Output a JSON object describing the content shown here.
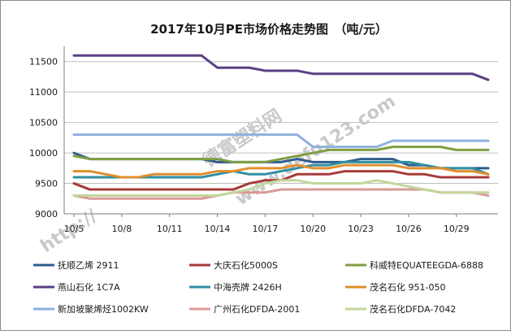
{
  "chart_data": {
    "type": "line",
    "title": "2017年10月PE市场价格走势图　（吨/元）",
    "xlabel": "",
    "ylabel": "",
    "ylim": [
      9000,
      11750
    ],
    "yticks": [
      9000,
      9500,
      10000,
      10500,
      11000,
      11500
    ],
    "x": [
      5,
      6,
      7,
      8,
      9,
      10,
      11,
      12,
      13,
      14,
      15,
      16,
      17,
      18,
      19,
      20,
      21,
      22,
      23,
      24,
      25,
      26,
      27,
      28,
      29,
      30,
      31
    ],
    "xtick_labels": [
      {
        "x": 5,
        "label": "10/5"
      },
      {
        "x": 8,
        "label": "10/8"
      },
      {
        "x": 11,
        "label": "10/11"
      },
      {
        "x": 14,
        "label": "10/14"
      },
      {
        "x": 17,
        "label": "10/17"
      },
      {
        "x": 20,
        "label": "10/20"
      },
      {
        "x": 23,
        "label": "10/23"
      },
      {
        "x": 26,
        "label": "10/26"
      },
      {
        "x": 29,
        "label": "10/29"
      }
    ],
    "series": [
      {
        "name": "抚顺乙烯 2911",
        "color": "#2e5c8c",
        "values": [
          10000,
          9900,
          9900,
          9900,
          9900,
          9900,
          9900,
          9900,
          9900,
          9850,
          9850,
          9850,
          9850,
          9850,
          9900,
          9850,
          9850,
          9850,
          9900,
          9900,
          9900,
          9800,
          9800,
          9750,
          9750,
          9750,
          9750
        ]
      },
      {
        "name": "大庆石化5000S",
        "color": "#a83a3a",
        "values": [
          9500,
          9400,
          9400,
          9400,
          9400,
          9400,
          9400,
          9400,
          9400,
          9400,
          9400,
          9500,
          9550,
          9550,
          9650,
          9650,
          9650,
          9700,
          9700,
          9700,
          9700,
          9650,
          9650,
          9600,
          9600,
          9600,
          9600
        ]
      },
      {
        "name": "科威特EQUATEEGDA-6888",
        "color": "#7f9e42",
        "values": [
          9950,
          9900,
          9900,
          9900,
          9900,
          9900,
          9900,
          9900,
          9900,
          9900,
          9850,
          9850,
          9850,
          9900,
          9950,
          10000,
          10050,
          10050,
          10050,
          10050,
          10100,
          10100,
          10100,
          10100,
          10050,
          10050,
          10050
        ]
      },
      {
        "name": "燕山石化 1C7A",
        "color": "#5b3f86",
        "values": [
          11600,
          11600,
          11600,
          11600,
          11600,
          11600,
          11600,
          11600,
          11600,
          11400,
          11400,
          11400,
          11350,
          11350,
          11350,
          11300,
          11300,
          11300,
          11300,
          11300,
          11300,
          11300,
          11300,
          11300,
          11300,
          11300,
          11200
        ]
      },
      {
        "name": "中海壳牌 2426H",
        "color": "#2f8fa3",
        "values": [
          9600,
          9600,
          9600,
          9600,
          9600,
          9600,
          9600,
          9600,
          9600,
          9650,
          9700,
          9650,
          9650,
          9700,
          9750,
          9800,
          9800,
          9850,
          9850,
          9850,
          9850,
          9850,
          9800,
          9750,
          9750,
          9750,
          9650
        ]
      },
      {
        "name": "茂名石化 951-050",
        "color": "#e08f2e",
        "values": [
          9700,
          9700,
          9650,
          9600,
          9600,
          9650,
          9650,
          9650,
          9650,
          9700,
          9700,
          9750,
          9750,
          9750,
          9800,
          9750,
          9750,
          9800,
          9800,
          9800,
          9800,
          9750,
          9750,
          9750,
          9700,
          9700,
          9650
        ]
      },
      {
        "name": "新加坡聚烯烃1002KW",
        "color": "#8eb1dc",
        "values": [
          10300,
          10300,
          10300,
          10300,
          10300,
          10300,
          10300,
          10300,
          10300,
          10300,
          10300,
          10300,
          10300,
          10300,
          10300,
          10100,
          10100,
          10100,
          10100,
          10100,
          10200,
          10200,
          10200,
          10200,
          10200,
          10200,
          10200
        ]
      },
      {
        "name": "广州石化DFDA-2001",
        "color": "#d99a96",
        "values": [
          9300,
          9250,
          9250,
          9250,
          9250,
          9250,
          9250,
          9250,
          9250,
          9300,
          9350,
          9350,
          9350,
          9400,
          9400,
          9400,
          9400,
          9400,
          9400,
          9400,
          9400,
          9400,
          9400,
          9350,
          9350,
          9350,
          9300
        ]
      },
      {
        "name": "茂名石化DFDA-7042",
        "color": "#c3d69b",
        "values": [
          9300,
          9300,
          9300,
          9300,
          9300,
          9300,
          9300,
          9300,
          9300,
          9300,
          9350,
          9400,
          9500,
          9550,
          9550,
          9500,
          9500,
          9500,
          9500,
          9550,
          9500,
          9450,
          9400,
          9350,
          9350,
          9350,
          9350
        ]
      }
    ]
  },
  "watermark": {
    "line1": "德富塑料网",
    "line2": "www.defu123.com",
    "line3": "http://"
  }
}
